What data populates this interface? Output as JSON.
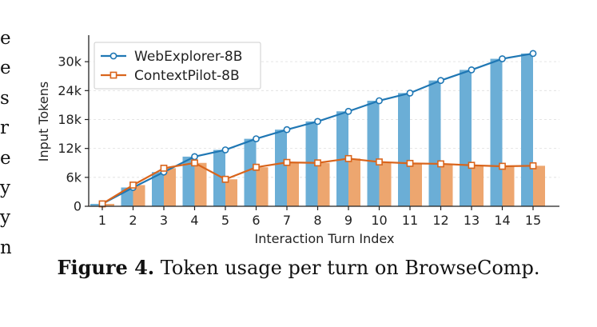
{
  "left_text_fragments": [
    "e",
    "e",
    "s",
    "r",
    "e",
    "y",
    "y",
    "n"
  ],
  "caption": {
    "label": "Figure 4.",
    "text": " Token usage per turn on BrowseComp."
  },
  "chart_data": {
    "type": "bar",
    "categories": [
      "1",
      "2",
      "3",
      "4",
      "5",
      "6",
      "7",
      "8",
      "9",
      "10",
      "11",
      "12",
      "13",
      "14",
      "15"
    ],
    "xlabel": "Interaction Turn Index",
    "ylabel": "Input Tokens",
    "ylim": [
      0,
      35500
    ],
    "yticks": [
      0,
      6000,
      12000,
      18000,
      24000,
      30000
    ],
    "yticklabels": [
      "0",
      "6k",
      "12k",
      "18k",
      "24k",
      "30k"
    ],
    "grid": true,
    "legend_position": "top-left",
    "series": [
      {
        "name": "WebExplorer-8B",
        "color": "#1f77b4",
        "bar_color": "#6baed6",
        "marker": "circle",
        "values": [
          500,
          3900,
          7100,
          10300,
          11700,
          14000,
          15900,
          17600,
          19700,
          21900,
          23500,
          26100,
          28300,
          30600,
          31700
        ]
      },
      {
        "name": "ContextPilot-8B",
        "color": "#d9651c",
        "bar_color": "#eda66f",
        "marker": "square",
        "values": [
          500,
          4400,
          7900,
          9000,
          5600,
          8100,
          9100,
          9000,
          9900,
          9200,
          8900,
          8800,
          8500,
          8300,
          8400
        ]
      }
    ]
  }
}
